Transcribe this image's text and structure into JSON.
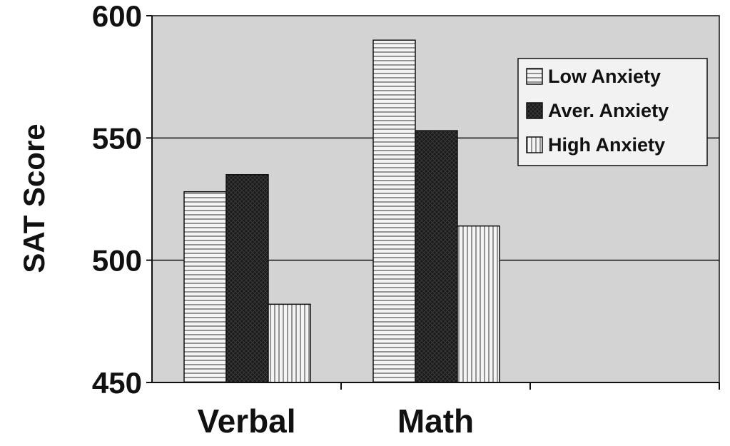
{
  "chart_data": {
    "type": "bar",
    "ylabel": "SAT Score",
    "categories": [
      "Verbal",
      "Math"
    ],
    "ylim": [
      450,
      600
    ],
    "yticks": [
      450,
      500,
      550,
      600
    ],
    "grid": true,
    "legend_position": "top-right",
    "series": [
      {
        "name": "Low Anxiety",
        "pattern": "horizontal-lines",
        "values": [
          528,
          590
        ]
      },
      {
        "name": "Aver. Anxiety",
        "pattern": "dark-crosshatch",
        "values": [
          535,
          553
        ]
      },
      {
        "name": "High Anxiety",
        "pattern": "vertical-lines",
        "values": [
          482,
          514
        ]
      }
    ]
  },
  "colors": {
    "plot_background": "#d3d3d3",
    "bar_outline": "#111111",
    "dark_fill": "#1a1a1a"
  }
}
